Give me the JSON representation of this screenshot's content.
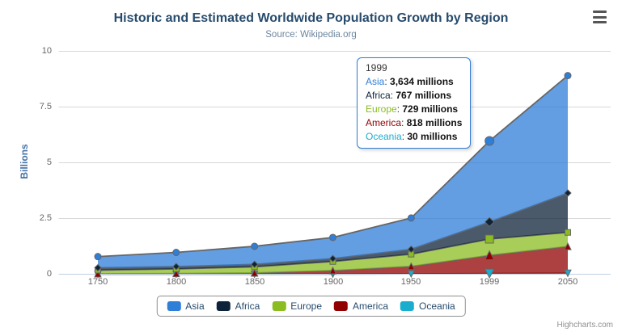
{
  "header": {
    "title": "Historic and Estimated Worldwide Population Growth by Region",
    "subtitle": "Source: Wikipedia.org"
  },
  "chart_data": {
    "type": "area",
    "stacking": "normal",
    "title": "Historic and Estimated Worldwide Population Growth by Region",
    "subtitle": "Source: Wikipedia.org",
    "categories": [
      "1750",
      "1800",
      "1850",
      "1900",
      "1950",
      "1999",
      "2050"
    ],
    "series": [
      {
        "name": "Asia",
        "color": "#2f7ed8",
        "marker": "circle",
        "values": [
          502,
          635,
          809,
          947,
          1402,
          3634,
          5268
        ]
      },
      {
        "name": "Africa",
        "color": "#0d233a",
        "marker": "diamond",
        "values": [
          106,
          107,
          111,
          133,
          221,
          767,
          1766
        ]
      },
      {
        "name": "Europe",
        "color": "#8bbc21",
        "marker": "square",
        "values": [
          163,
          203,
          276,
          408,
          547,
          729,
          628
        ]
      },
      {
        "name": "America",
        "color": "#910000",
        "marker": "triangle",
        "values": [
          18,
          31,
          54,
          156,
          339,
          818,
          1201
        ]
      },
      {
        "name": "Oceania",
        "color": "#1aadce",
        "marker": "triangle-down",
        "values": [
          2,
          2,
          2,
          6,
          13,
          30,
          46
        ]
      }
    ],
    "xlabel": "",
    "ylabel": "Billions",
    "yticks": [
      "0",
      "2.5",
      "5",
      "7.5",
      "10"
    ],
    "ylim": [
      0,
      10
    ],
    "value_unit": "millions",
    "grid": "horizontal-only",
    "legend_position": "bottom-center",
    "line_color": "#666666",
    "fill_opacity": 0.75,
    "grid_color": "#d8d8d8",
    "axis_line_color": "#c0d0e0"
  },
  "tooltip": {
    "category": "1999",
    "hovered_index": 5,
    "border_color": "#2f7ed8",
    "rows": [
      {
        "label": "Asia",
        "value": "3,634 millions"
      },
      {
        "label": "Africa",
        "value": "767 millions"
      },
      {
        "label": "Europe",
        "value": "729 millions"
      },
      {
        "label": "America",
        "value": "818 millions"
      },
      {
        "label": "Oceania",
        "value": "30 millions"
      }
    ]
  },
  "credits": {
    "label": "Highcharts.com"
  }
}
